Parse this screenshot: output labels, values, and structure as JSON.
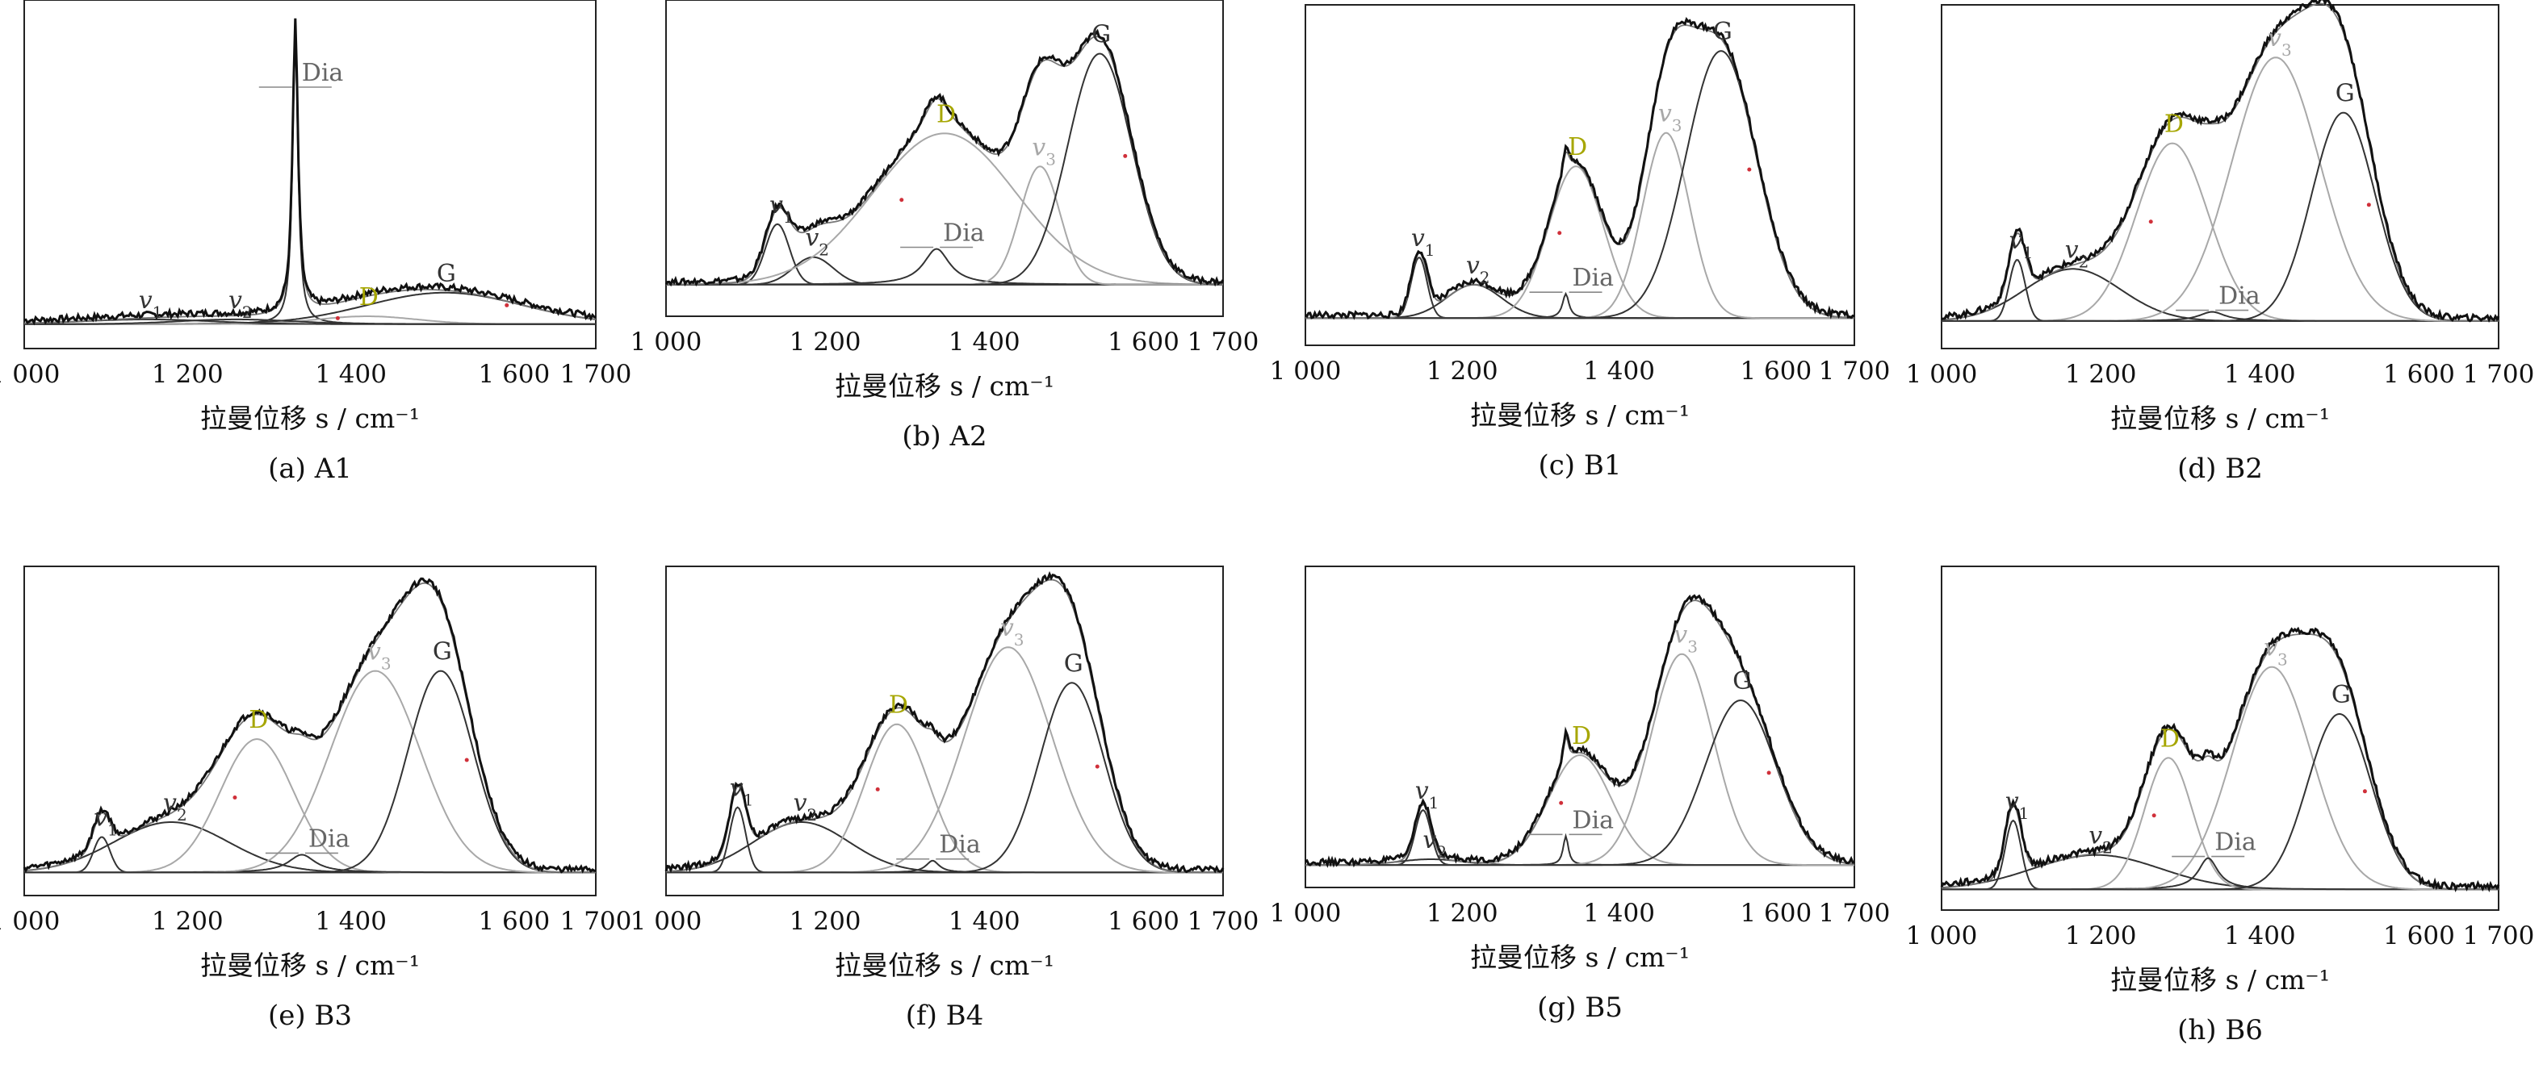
{
  "figure": {
    "x_axis_title": "拉曼位移 s / cm⁻¹",
    "x_ticks": [
      1000,
      1200,
      1400,
      1600,
      1700
    ],
    "x_tick_labels": [
      "1 000",
      "1 200",
      "1 400",
      "1 600",
      "1 700"
    ]
  },
  "chart_data": [
    {
      "type": "line",
      "panel": "(a) A1",
      "xlim": [
        1000,
        1700
      ],
      "ylim": [
        0,
        1.0
      ],
      "xlabel": "拉曼位移 s / cm⁻¹",
      "components": [
        {
          "label": "Dia",
          "center": 1332,
          "height": 0.92,
          "width": 4
        },
        {
          "label": "G",
          "center": 1515,
          "height": 0.1,
          "width": 95
        },
        {
          "label": "D",
          "center": 1420,
          "height": 0.025,
          "width": 60
        },
        {
          "label": "v1",
          "center": 1150,
          "height": 0.015,
          "width": 80
        },
        {
          "label": "v2",
          "center": 1260,
          "height": 0.015,
          "width": 70
        }
      ]
    },
    {
      "type": "line",
      "panel": "(b) A2",
      "xlim": [
        1000,
        1700
      ],
      "ylim": [
        0,
        1.0
      ],
      "xlabel": "拉曼位移 s / cm⁻¹",
      "components": [
        {
          "label": "v1",
          "center": 1140,
          "height": 0.22,
          "width": 15
        },
        {
          "label": "v2",
          "center": 1185,
          "height": 0.1,
          "width": 25
        },
        {
          "label": "D",
          "center": 1350,
          "height": 0.55,
          "width": 90
        },
        {
          "label": "Dia",
          "center": 1340,
          "height": 0.13,
          "width": 20
        },
        {
          "label": "v3",
          "center": 1470,
          "height": 0.43,
          "width": 25
        },
        {
          "label": "G",
          "center": 1545,
          "height": 0.84,
          "width": 40
        }
      ]
    },
    {
      "type": "line",
      "panel": "(c) B1",
      "xlim": [
        1000,
        1700
      ],
      "ylim": [
        0,
        1.0
      ],
      "xlabel": "拉曼位移 s / cm⁻¹",
      "components": [
        {
          "label": "v1",
          "center": 1145,
          "height": 0.2,
          "width": 10
        },
        {
          "label": "v2",
          "center": 1215,
          "height": 0.11,
          "width": 35
        },
        {
          "label": "D",
          "center": 1345,
          "height": 0.5,
          "width": 35
        },
        {
          "label": "Dia",
          "center": 1332,
          "height": 0.08,
          "width": 5
        },
        {
          "label": "v3",
          "center": 1460,
          "height": 0.61,
          "width": 30
        },
        {
          "label": "G",
          "center": 1530,
          "height": 0.88,
          "width": 45
        }
      ]
    },
    {
      "type": "line",
      "panel": "(d) B2",
      "xlim": [
        1000,
        1700
      ],
      "ylim": [
        0,
        1.0
      ],
      "xlabel": "拉曼位移 s / cm⁻¹",
      "components": [
        {
          "label": "v1",
          "center": 1095,
          "height": 0.2,
          "width": 10
        },
        {
          "label": "v2",
          "center": 1165,
          "height": 0.17,
          "width": 60
        },
        {
          "label": "D",
          "center": 1290,
          "height": 0.58,
          "width": 45
        },
        {
          "label": "Dia",
          "center": 1340,
          "height": 0.03,
          "width": 20
        },
        {
          "label": "v3",
          "center": 1420,
          "height": 0.86,
          "width": 55
        },
        {
          "label": "G",
          "center": 1505,
          "height": 0.68,
          "width": 40
        }
      ]
    },
    {
      "type": "line",
      "panel": "(e) B3",
      "xlim": [
        1000,
        1700
      ],
      "ylim": [
        0,
        1.0
      ],
      "xlabel": "拉曼位移 s / cm⁻¹",
      "components": [
        {
          "label": "v1",
          "center": 1095,
          "height": 0.12,
          "width": 10
        },
        {
          "label": "v2",
          "center": 1180,
          "height": 0.17,
          "width": 70
        },
        {
          "label": "D",
          "center": 1285,
          "height": 0.45,
          "width": 45
        },
        {
          "label": "Dia",
          "center": 1340,
          "height": 0.06,
          "width": 20
        },
        {
          "label": "v3",
          "center": 1430,
          "height": 0.68,
          "width": 55
        },
        {
          "label": "G",
          "center": 1510,
          "height": 0.68,
          "width": 40
        }
      ]
    },
    {
      "type": "line",
      "panel": "(f) B4",
      "xlim": [
        1000,
        1700
      ],
      "ylim": [
        0,
        1.0
      ],
      "xlabel": "拉曼位移 s / cm⁻¹",
      "components": [
        {
          "label": "v1",
          "center": 1090,
          "height": 0.22,
          "width": 10
        },
        {
          "label": "v2",
          "center": 1170,
          "height": 0.17,
          "width": 60
        },
        {
          "label": "D",
          "center": 1290,
          "height": 0.5,
          "width": 40
        },
        {
          "label": "Dia",
          "center": 1335,
          "height": 0.04,
          "width": 10
        },
        {
          "label": "v3",
          "center": 1430,
          "height": 0.76,
          "width": 55
        },
        {
          "label": "G",
          "center": 1510,
          "height": 0.64,
          "width": 40
        }
      ]
    },
    {
      "type": "line",
      "panel": "(g) B5",
      "xlim": [
        1000,
        1700
      ],
      "ylim": [
        0,
        1.0
      ],
      "xlabel": "拉曼位移 s / cm⁻¹",
      "components": [
        {
          "label": "v1",
          "center": 1150,
          "height": 0.19,
          "width": 10
        },
        {
          "label": "v2",
          "center": 1160,
          "height": 0.02,
          "width": 40
        },
        {
          "label": "D",
          "center": 1350,
          "height": 0.38,
          "width": 40
        },
        {
          "label": "Dia",
          "center": 1332,
          "height": 0.1,
          "width": 4
        },
        {
          "label": "v3",
          "center": 1480,
          "height": 0.73,
          "width": 40
        },
        {
          "label": "G",
          "center": 1555,
          "height": 0.57,
          "width": 45
        }
      ]
    },
    {
      "type": "line",
      "panel": "(h) B6",
      "xlim": [
        1000,
        1700
      ],
      "ylim": [
        0,
        1.0
      ],
      "xlabel": "拉曼位移 s / cm⁻¹",
      "components": [
        {
          "label": "v1",
          "center": 1090,
          "height": 0.22,
          "width": 10
        },
        {
          "label": "v2",
          "center": 1195,
          "height": 0.11,
          "width": 80
        },
        {
          "label": "D",
          "center": 1285,
          "height": 0.42,
          "width": 30
        },
        {
          "label": "Dia",
          "center": 1335,
          "height": 0.1,
          "width": 15
        },
        {
          "label": "v3",
          "center": 1415,
          "height": 0.71,
          "width": 50
        },
        {
          "label": "G",
          "center": 1500,
          "height": 0.56,
          "width": 40
        }
      ]
    }
  ],
  "colors": {
    "spectrum": "#111111",
    "fit": "#777777",
    "component_dark": "#333333",
    "component_light": "#a8a8a8",
    "D_label": "#a6a600",
    "Dia_label": "#666666",
    "marker_red": "#d0303a",
    "marker_green": "#4fbf5f",
    "marker_cyan": "#47b8d8"
  }
}
